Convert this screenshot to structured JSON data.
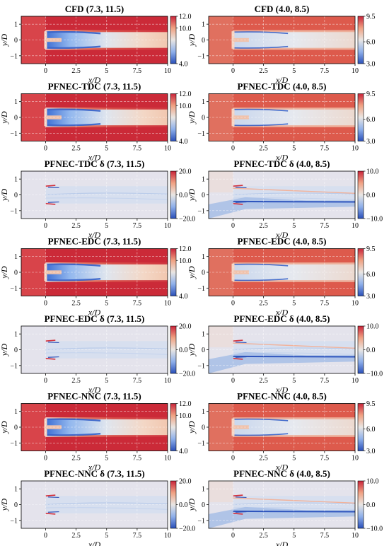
{
  "chart_data": [
    {
      "type": "heatmap",
      "title": "CFD (7.3, 11.5)",
      "xlabel": "x/D",
      "ylabel": "y/D",
      "xticks": [
        "0",
        "2.5",
        "5",
        "7.5",
        "10"
      ],
      "yticks": [
        "1",
        "0",
        "−1"
      ],
      "xlim": [
        -2,
        10
      ],
      "ylim": [
        -1.5,
        1.5
      ],
      "colorbar": {
        "ticks": [
          "12.0",
          "10.0",
          "4.0"
        ],
        "min": 4.0,
        "max": 12.0
      },
      "kind": "field",
      "ambient": 12.0,
      "grid": true
    },
    {
      "type": "heatmap",
      "title": "CFD (4.0, 8.5)",
      "xlabel": "x/D",
      "ylabel": "y/D",
      "xticks": [
        "0",
        "2.5",
        "5",
        "7.5",
        "10"
      ],
      "yticks": [
        "1",
        "0",
        "−1"
      ],
      "xlim": [
        -2,
        10
      ],
      "ylim": [
        -1.5,
        1.5
      ],
      "colorbar": {
        "ticks": [
          "9.5",
          "6.0",
          "3.0"
        ],
        "min": 3.0,
        "max": 9.5
      },
      "kind": "field",
      "ambient": 8.5,
      "grid": true
    },
    {
      "type": "heatmap",
      "title": "PFNEC-TDC (7.3, 11.5)",
      "xlabel": "x/D",
      "ylabel": "y/D",
      "xticks": [
        "0",
        "2.5",
        "5",
        "7.5",
        "10"
      ],
      "yticks": [
        "1",
        "0",
        "−1"
      ],
      "xlim": [
        -2,
        10
      ],
      "ylim": [
        -1.5,
        1.5
      ],
      "colorbar": {
        "ticks": [
          "12.0",
          "10.0",
          "4.0"
        ],
        "min": 4.0,
        "max": 12.0
      },
      "kind": "field",
      "ambient": 12.0,
      "grid": true
    },
    {
      "type": "heatmap",
      "title": "PFNEC-TDC (4.0, 8.5)",
      "xlabel": "x/D",
      "ylabel": "y/D",
      "xticks": [
        "0",
        "2.5",
        "5",
        "7.5",
        "10"
      ],
      "yticks": [
        "1",
        "0",
        "−1"
      ],
      "xlim": [
        -2,
        10
      ],
      "ylim": [
        -1.5,
        1.5
      ],
      "colorbar": {
        "ticks": [
          "9.5",
          "6.0",
          "3.0"
        ],
        "min": 3.0,
        "max": 9.5
      },
      "kind": "field",
      "ambient": 8.5,
      "grid": true
    },
    {
      "type": "heatmap",
      "title": "PFNEC-TDC δ (7.3, 11.5)",
      "xlabel": "x/D",
      "ylabel": "y/D",
      "xticks": [
        "0",
        "2.5",
        "5",
        "7.5",
        "10"
      ],
      "yticks": [
        "1",
        "0",
        "−1"
      ],
      "xlim": [
        -2,
        10
      ],
      "ylim": [
        -1.5,
        1.5
      ],
      "colorbar": {
        "ticks": [
          "20.0",
          "0.0",
          "−20.0"
        ],
        "min": -20.0,
        "max": 20.0
      },
      "kind": "diff",
      "grid": true
    },
    {
      "type": "heatmap",
      "title": "PFNEC-TDC δ (4.0, 8.5)",
      "xlabel": "x/D",
      "ylabel": "y/D",
      "xticks": [
        "0",
        "2.5",
        "5",
        "7.5",
        "10"
      ],
      "yticks": [
        "1",
        "0",
        "−1"
      ],
      "xlim": [
        -2,
        10
      ],
      "ylim": [
        -1.5,
        1.5
      ],
      "colorbar": {
        "ticks": [
          "10.0",
          "0.0",
          "−10.0"
        ],
        "min": -10.0,
        "max": 10.0
      },
      "kind": "diff",
      "grid": true
    },
    {
      "type": "heatmap",
      "title": "PFNEC-EDC (7.3, 11.5)",
      "xlabel": "x/D",
      "ylabel": "y/D",
      "xticks": [
        "0",
        "2.5",
        "5",
        "7.5",
        "10"
      ],
      "yticks": [
        "1",
        "0",
        "−1"
      ],
      "xlim": [
        -2,
        10
      ],
      "ylim": [
        -1.5,
        1.5
      ],
      "colorbar": {
        "ticks": [
          "12.0",
          "10.0",
          "4.0"
        ],
        "min": 4.0,
        "max": 12.0
      },
      "kind": "field",
      "ambient": 12.0,
      "grid": true
    },
    {
      "type": "heatmap",
      "title": "PFNEC-EDC (4.0, 8.5)",
      "xlabel": "x/D",
      "ylabel": "y/D",
      "xticks": [
        "0",
        "2.5",
        "5",
        "7.5",
        "10"
      ],
      "yticks": [
        "1",
        "0",
        "−1"
      ],
      "xlim": [
        -2,
        10
      ],
      "ylim": [
        -1.5,
        1.5
      ],
      "colorbar": {
        "ticks": [
          "9.5",
          "6.0",
          "3.0"
        ],
        "min": 3.0,
        "max": 9.5
      },
      "kind": "field",
      "ambient": 8.5,
      "grid": true
    },
    {
      "type": "heatmap",
      "title": "PFNEC-EDC δ (7.3, 11.5)",
      "xlabel": "x/D",
      "ylabel": "y/D",
      "xticks": [
        "0",
        "2.5",
        "5",
        "7.5",
        "10"
      ],
      "yticks": [
        "1",
        "0",
        "−1"
      ],
      "xlim": [
        -2,
        10
      ],
      "ylim": [
        -1.5,
        1.5
      ],
      "colorbar": {
        "ticks": [
          "20.0",
          "0.0",
          "−20.0"
        ],
        "min": -20.0,
        "max": 20.0
      },
      "kind": "diff",
      "grid": true
    },
    {
      "type": "heatmap",
      "title": "PFNEC-EDC δ (4.0, 8.5)",
      "xlabel": "x/D",
      "ylabel": "y/D",
      "xticks": [
        "0",
        "2.5",
        "5",
        "7.5",
        "10"
      ],
      "yticks": [
        "1",
        "0",
        "−1"
      ],
      "xlim": [
        -2,
        10
      ],
      "ylim": [
        -1.5,
        1.5
      ],
      "colorbar": {
        "ticks": [
          "10.0",
          "0.0",
          "−10.0"
        ],
        "min": -10.0,
        "max": 10.0
      },
      "kind": "diff",
      "grid": true
    },
    {
      "type": "heatmap",
      "title": "PFNEC-NNC (7.3, 11.5)",
      "xlabel": "x/D",
      "ylabel": "y/D",
      "xticks": [
        "0",
        "2.5",
        "5",
        "7.5",
        "10"
      ],
      "yticks": [
        "1",
        "0",
        "−1"
      ],
      "xlim": [
        -2,
        10
      ],
      "ylim": [
        -1.5,
        1.5
      ],
      "colorbar": {
        "ticks": [
          "12.0",
          "10.0",
          "4.0"
        ],
        "min": 4.0,
        "max": 12.0
      },
      "kind": "field",
      "ambient": 12.0,
      "grid": true
    },
    {
      "type": "heatmap",
      "title": "PFNEC-NNC (4.0, 8.5)",
      "xlabel": "x/D",
      "ylabel": "y/D",
      "xticks": [
        "0",
        "2.5",
        "5",
        "7.5",
        "10"
      ],
      "yticks": [
        "1",
        "0",
        "−1"
      ],
      "xlim": [
        -2,
        10
      ],
      "ylim": [
        -1.5,
        1.5
      ],
      "colorbar": {
        "ticks": [
          "9.5",
          "6.0",
          "3.0"
        ],
        "min": 3.0,
        "max": 9.5
      },
      "kind": "field",
      "ambient": 8.5,
      "grid": true
    },
    {
      "type": "heatmap",
      "title": "PFNEC-NNC δ (7.3, 11.5)",
      "xlabel": "x/D",
      "ylabel": "y/D",
      "xticks": [
        "0",
        "2.5",
        "5",
        "7.5",
        "10"
      ],
      "yticks": [
        "1",
        "0",
        "−1"
      ],
      "xlim": [
        -2,
        10
      ],
      "ylim": [
        -1.5,
        1.5
      ],
      "colorbar": {
        "ticks": [
          "20.0",
          "0.0",
          "−20.0"
        ],
        "min": -20.0,
        "max": 20.0
      },
      "kind": "diff",
      "grid": true
    },
    {
      "type": "heatmap",
      "title": "PFNEC-NNC δ (4.0, 8.5)",
      "xlabel": "x/D",
      "ylabel": "y/D",
      "xticks": [
        "0",
        "2.5",
        "5",
        "7.5",
        "10"
      ],
      "yticks": [
        "1",
        "0",
        "−1"
      ],
      "xlim": [
        -2,
        10
      ],
      "ylim": [
        -1.5,
        1.5
      ],
      "colorbar": {
        "ticks": [
          "10.0",
          "0.0",
          "−10.0"
        ],
        "min": -10.0,
        "max": 10.0
      },
      "kind": "diff",
      "grid": true
    }
  ]
}
